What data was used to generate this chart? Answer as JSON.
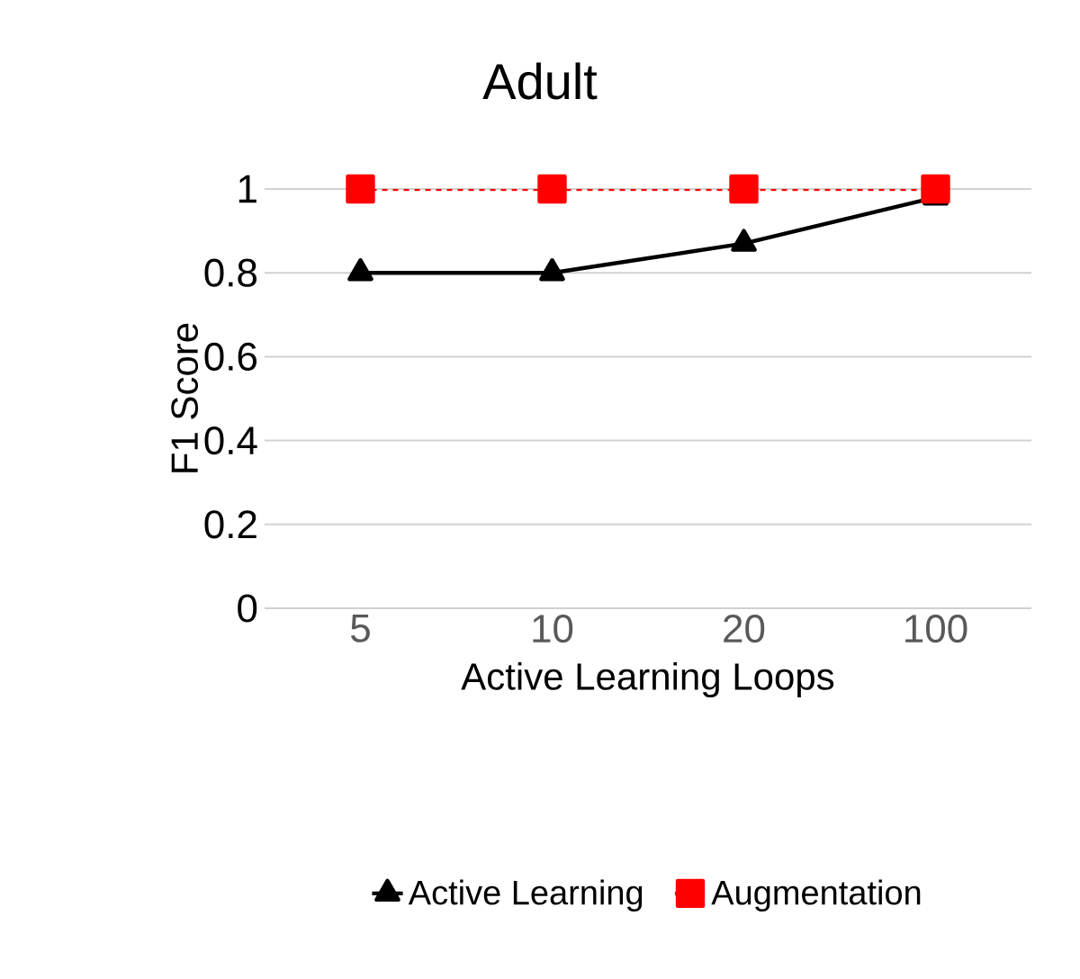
{
  "chart_data": {
    "type": "line",
    "title": "Adult",
    "xlabel": "Active Learning Loops",
    "ylabel": "F1 Score",
    "categories": [
      "5",
      "10",
      "20",
      "100"
    ],
    "series": [
      {
        "name": "Active Learning",
        "color": "#000000",
        "values": [
          0.8,
          0.8,
          0.87,
          0.98
        ],
        "marker": "triangle",
        "line_style": "solid"
      },
      {
        "name": "Augmentation",
        "color": "#ff0000",
        "values": [
          1,
          1,
          1,
          1
        ],
        "marker": "square",
        "line_style": "dashed"
      }
    ],
    "ylim": [
      0,
      1
    ],
    "yticks": [
      0,
      0.2,
      0.4,
      0.6,
      0.8,
      1
    ],
    "grid": "y",
    "legend": "bottom"
  }
}
